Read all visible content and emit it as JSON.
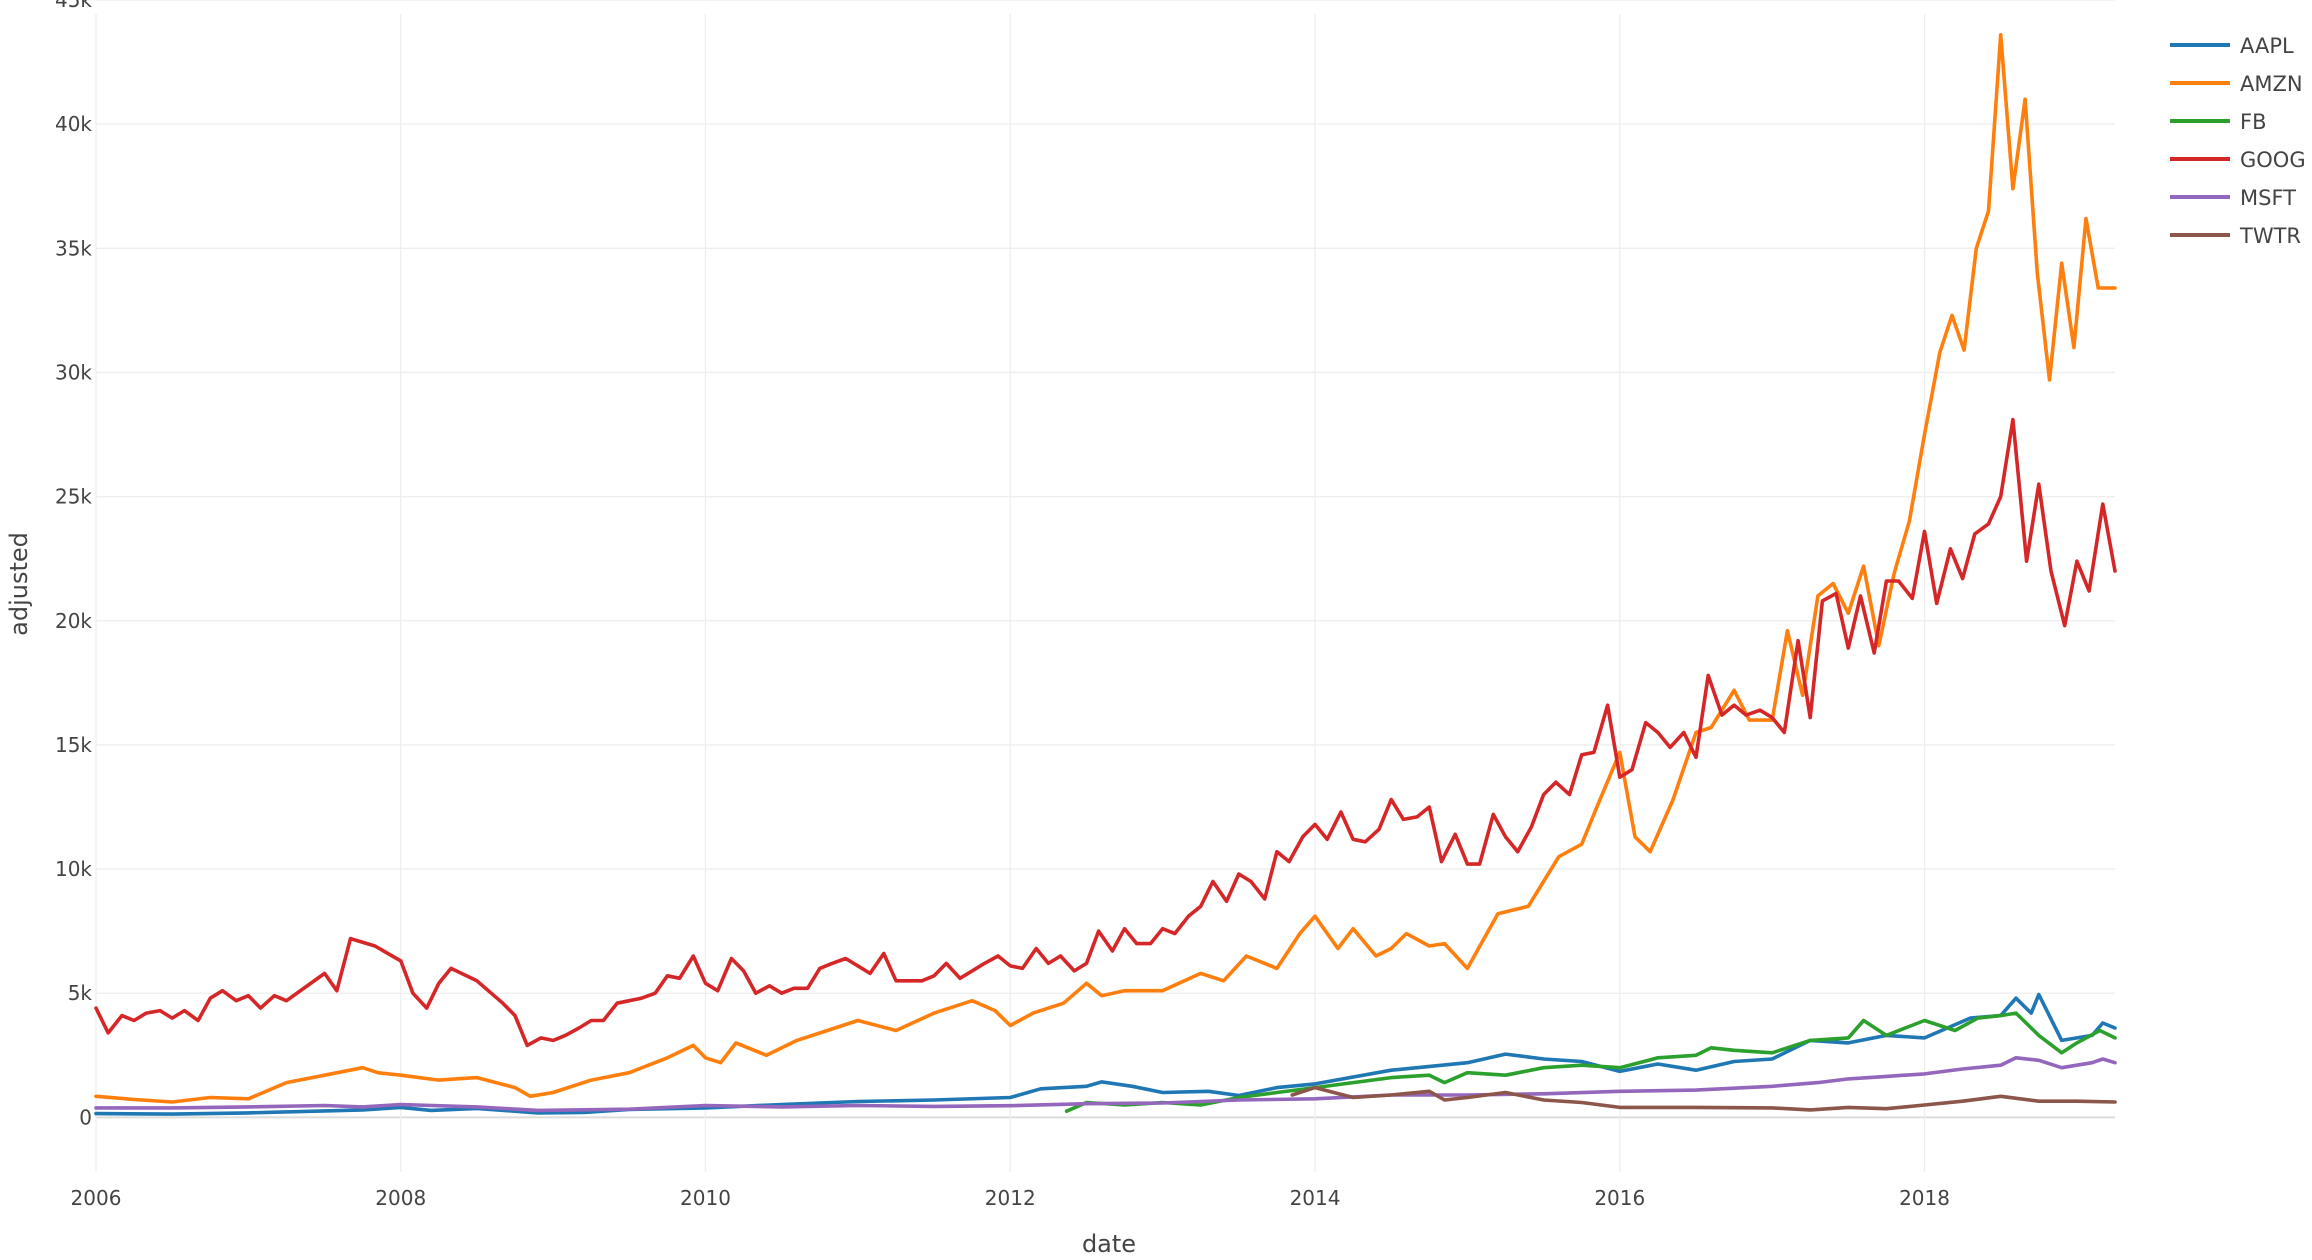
{
  "chart_data": {
    "type": "line",
    "xlabel": "date",
    "ylabel": "adjusted",
    "xlim": [
      2006.0,
      2019.25
    ],
    "ylim": [
      -2200,
      45000
    ],
    "x_ticks": [
      2006,
      2008,
      2010,
      2012,
      2014,
      2016,
      2018
    ],
    "x_tick_labels": [
      "2006",
      "2008",
      "2010",
      "2012",
      "2014",
      "2016",
      "2018"
    ],
    "y_ticks": [
      0,
      5000,
      10000,
      15000,
      20000,
      25000,
      30000,
      35000,
      40000,
      45000
    ],
    "y_tick_labels": [
      "0",
      "5k",
      "10k",
      "15k",
      "20k",
      "25k",
      "30k",
      "35k",
      "40k",
      "45k"
    ],
    "grid": true,
    "legend_position": "top-right",
    "series": [
      {
        "name": "AAPL",
        "color": "#1f77b4",
        "x": [
          2006.0,
          2006.5,
          2007.0,
          2007.5,
          2007.75,
          2008.0,
          2008.2,
          2008.5,
          2008.9,
          2009.2,
          2009.5,
          2010.0,
          2010.5,
          2011.0,
          2011.5,
          2012.0,
          2012.2,
          2012.5,
          2012.6,
          2012.8,
          2013.0,
          2013.3,
          2013.5,
          2013.75,
          2014.0,
          2014.5,
          2015.0,
          2015.25,
          2015.5,
          2015.75,
          2016.0,
          2016.25,
          2016.5,
          2016.75,
          2017.0,
          2017.25,
          2017.5,
          2017.75,
          2018.0,
          2018.3,
          2018.5,
          2018.6,
          2018.7,
          2018.75,
          2018.9,
          2019.0,
          2019.1,
          2019.17,
          2019.25
        ],
        "y": [
          150,
          130,
          180,
          260,
          300,
          400,
          280,
          360,
          180,
          200,
          320,
          380,
          520,
          640,
          700,
          800,
          1150,
          1250,
          1430,
          1250,
          1000,
          1050,
          880,
          1200,
          1350,
          1900,
          2200,
          2550,
          2350,
          2250,
          1850,
          2150,
          1900,
          2250,
          2350,
          3100,
          3000,
          3300,
          3200,
          4000,
          4100,
          4800,
          4200,
          4950,
          3100,
          3200,
          3300,
          3800,
          3600
        ]
      },
      {
        "name": "AMZN",
        "color": "#ff7f0e",
        "x": [
          2006.0,
          2006.25,
          2006.5,
          2006.75,
          2007.0,
          2007.25,
          2007.5,
          2007.75,
          2007.85,
          2008.0,
          2008.25,
          2008.5,
          2008.75,
          2008.85,
          2009.0,
          2009.25,
          2009.5,
          2009.75,
          2009.92,
          2010.0,
          2010.1,
          2010.2,
          2010.4,
          2010.6,
          2010.8,
          2011.0,
          2011.25,
          2011.5,
          2011.75,
          2011.9,
          2012.0,
          2012.15,
          2012.35,
          2012.5,
          2012.6,
          2012.75,
          2013.0,
          2013.25,
          2013.4,
          2013.55,
          2013.75,
          2013.9,
          2014.0,
          2014.15,
          2014.25,
          2014.4,
          2014.5,
          2014.6,
          2014.75,
          2014.85,
          2015.0,
          2015.2,
          2015.4,
          2015.6,
          2015.75,
          2015.85,
          2016.0,
          2016.1,
          2016.2,
          2016.35,
          2016.5,
          2016.6,
          2016.75,
          2016.85,
          2017.0,
          2017.1,
          2017.2,
          2017.3,
          2017.4,
          2017.5,
          2017.6,
          2017.7,
          2017.8,
          2017.9,
          2018.0,
          2018.1,
          2018.18,
          2018.26,
          2018.34,
          2018.42,
          2018.5,
          2018.58,
          2018.66,
          2018.74,
          2018.82,
          2018.9,
          2018.98,
          2019.06,
          2019.14,
          2019.22,
          2019.25
        ],
        "y": [
          850,
          720,
          620,
          800,
          750,
          1400,
          1700,
          2000,
          1800,
          1700,
          1500,
          1600,
          1200,
          850,
          1000,
          1500,
          1800,
          2400,
          2900,
          2400,
          2200,
          3000,
          2500,
          3100,
          3500,
          3900,
          3500,
          4200,
          4700,
          4300,
          3700,
          4200,
          4600,
          5400,
          4900,
          5100,
          5100,
          5800,
          5500,
          6500,
          6000,
          7400,
          8100,
          6800,
          7600,
          6500,
          6800,
          7400,
          6900,
          7000,
          6000,
          8200,
          8500,
          10500,
          11000,
          12500,
          14700,
          11300,
          10700,
          12800,
          15500,
          15700,
          17200,
          16000,
          16000,
          19600,
          17000,
          21000,
          21500,
          20300,
          22200,
          19000,
          21900,
          24000,
          27500,
          30800,
          32300,
          30900,
          35000,
          36500,
          43600,
          37400,
          41000,
          34000,
          29700,
          34400,
          31000,
          36200,
          33400,
          33400,
          33400
        ]
      },
      {
        "name": "FB",
        "color": "#2ca02c",
        "x": [
          2012.37,
          2012.5,
          2012.75,
          2013.0,
          2013.25,
          2013.5,
          2013.75,
          2014.0,
          2014.25,
          2014.5,
          2014.75,
          2014.85,
          2015.0,
          2015.25,
          2015.5,
          2015.75,
          2016.0,
          2016.25,
          2016.5,
          2016.6,
          2016.75,
          2017.0,
          2017.25,
          2017.5,
          2017.6,
          2017.75,
          2018.0,
          2018.2,
          2018.35,
          2018.5,
          2018.6,
          2018.75,
          2018.9,
          2019.0,
          2019.15,
          2019.25
        ],
        "y": [
          250,
          600,
          500,
          600,
          500,
          800,
          1000,
          1200,
          1400,
          1600,
          1700,
          1400,
          1800,
          1700,
          2000,
          2100,
          2000,
          2400,
          2500,
          2800,
          2700,
          2600,
          3100,
          3200,
          3900,
          3300,
          3900,
          3500,
          4000,
          4100,
          4200,
          3300,
          2600,
          3000,
          3500,
          3200
        ]
      },
      {
        "name": "GOOG",
        "color": "#d62728",
        "x": [
          2006.0,
          2006.08,
          2006.17,
          2006.25,
          2006.33,
          2006.42,
          2006.5,
          2006.58,
          2006.67,
          2006.75,
          2006.83,
          2006.92,
          2007.0,
          2007.08,
          2007.17,
          2007.25,
          2007.5,
          2007.58,
          2007.67,
          2007.83,
          2008.0,
          2008.08,
          2008.17,
          2008.25,
          2008.33,
          2008.5,
          2008.67,
          2008.75,
          2008.83,
          2008.92,
          2009.0,
          2009.08,
          2009.17,
          2009.25,
          2009.33,
          2009.42,
          2009.5,
          2009.58,
          2009.67,
          2009.75,
          2009.83,
          2009.92,
          2010.0,
          2010.08,
          2010.17,
          2010.25,
          2010.33,
          2010.42,
          2010.5,
          2010.58,
          2010.67,
          2010.75,
          2010.83,
          2010.92,
          2011.0,
          2011.08,
          2011.17,
          2011.25,
          2011.33,
          2011.42,
          2011.5,
          2011.58,
          2011.67,
          2011.75,
          2011.83,
          2011.92,
          2012.0,
          2012.08,
          2012.17,
          2012.25,
          2012.33,
          2012.42,
          2012.5,
          2012.58,
          2012.67,
          2012.75,
          2012.83,
          2012.92,
          2013.0,
          2013.08,
          2013.17,
          2013.25,
          2013.33,
          2013.42,
          2013.5,
          2013.58,
          2013.67,
          2013.75,
          2013.83,
          2013.92,
          2014.0,
          2014.08,
          2014.17,
          2014.25,
          2014.33,
          2014.42,
          2014.5,
          2014.58,
          2014.67,
          2014.75,
          2014.83,
          2014.92,
          2015.0,
          2015.08,
          2015.17,
          2015.25,
          2015.33,
          2015.42,
          2015.5,
          2015.58,
          2015.67,
          2015.75,
          2015.83,
          2015.92,
          2016.0,
          2016.08,
          2016.17,
          2016.25,
          2016.33,
          2016.42,
          2016.5,
          2016.58,
          2016.67,
          2016.75,
          2016.83,
          2016.92,
          2017.0,
          2017.08,
          2017.17,
          2017.25,
          2017.33,
          2017.42,
          2017.5,
          2017.58,
          2017.67,
          2017.75,
          2017.83,
          2017.92,
          2018.0,
          2018.08,
          2018.17,
          2018.25,
          2018.33,
          2018.42,
          2018.5,
          2018.58,
          2018.67,
          2018.75,
          2018.83,
          2018.92,
          2019.0,
          2019.08,
          2019.17,
          2019.25
        ],
        "y": [
          4400,
          3400,
          4100,
          3900,
          4200,
          4300,
          4000,
          4300,
          3900,
          4800,
          5100,
          4700,
          4900,
          4400,
          4900,
          4700,
          5800,
          5100,
          7200,
          6900,
          6300,
          5000,
          4400,
          5400,
          6000,
          5500,
          4600,
          4100,
          2900,
          3200,
          3100,
          3300,
          3600,
          3900,
          3900,
          4600,
          4700,
          4800,
          5000,
          5700,
          5600,
          6500,
          5400,
          5100,
          6400,
          5900,
          5000,
          5300,
          5000,
          5200,
          5200,
          6000,
          6200,
          6400,
          6100,
          5800,
          6600,
          5500,
          5500,
          5500,
          5700,
          6200,
          5600,
          5900,
          6200,
          6500,
          6100,
          6000,
          6800,
          6200,
          6500,
          5900,
          6200,
          7500,
          6700,
          7600,
          7000,
          7000,
          7600,
          7400,
          8100,
          8500,
          9500,
          8700,
          9800,
          9500,
          8800,
          10700,
          10300,
          11300,
          11800,
          11200,
          12300,
          11200,
          11100,
          11600,
          12800,
          12000,
          12100,
          12500,
          10300,
          11400,
          10200,
          10200,
          12200,
          11300,
          10700,
          11700,
          13000,
          13500,
          13000,
          14600,
          14700,
          16600,
          13700,
          14000,
          15900,
          15500,
          14900,
          15500,
          14500,
          17800,
          16200,
          16600,
          16200,
          16400,
          16100,
          15500,
          19200,
          16100,
          20800,
          21100,
          18900,
          21000,
          18700,
          21600,
          21600,
          20900,
          23600,
          20700,
          22900,
          21700,
          23500,
          23900,
          25000,
          28100,
          22400,
          25500,
          22000,
          19800,
          22400,
          21200,
          24700,
          22000
        ]
      },
      {
        "name": "MSFT",
        "color": "#9467bd",
        "x": [
          2006.0,
          2006.5,
          2007.0,
          2007.5,
          2007.75,
          2008.0,
          2008.5,
          2008.9,
          2009.5,
          2010.0,
          2010.5,
          2011.0,
          2011.5,
          2012.0,
          2012.5,
          2013.0,
          2013.5,
          2014.0,
          2014.5,
          2015.0,
          2015.5,
          2016.0,
          2016.5,
          2017.0,
          2017.3,
          2017.5,
          2017.75,
          2018.0,
          2018.25,
          2018.5,
          2018.6,
          2018.75,
          2018.9,
          2019.0,
          2019.1,
          2019.17,
          2019.25
        ],
        "y": [
          380,
          380,
          420,
          480,
          420,
          520,
          420,
          280,
          330,
          480,
          420,
          480,
          440,
          470,
          550,
          580,
          700,
          750,
          900,
          900,
          950,
          1050,
          1100,
          1250,
          1400,
          1550,
          1650,
          1750,
          1950,
          2100,
          2400,
          2300,
          2000,
          2100,
          2200,
          2350,
          2200
        ]
      },
      {
        "name": "TWTR",
        "color": "#8c564b",
        "x": [
          2013.85,
          2014.0,
          2014.25,
          2014.5,
          2014.75,
          2014.85,
          2015.0,
          2015.25,
          2015.5,
          2015.75,
          2016.0,
          2016.5,
          2017.0,
          2017.25,
          2017.5,
          2017.75,
          2018.0,
          2018.25,
          2018.5,
          2018.75,
          2019.0,
          2019.25
        ],
        "y": [
          900,
          1200,
          800,
          900,
          1050,
          700,
          800,
          1000,
          700,
          600,
          400,
          400,
          380,
          300,
          400,
          350,
          500,
          650,
          850,
          650,
          650,
          620
        ]
      }
    ]
  }
}
